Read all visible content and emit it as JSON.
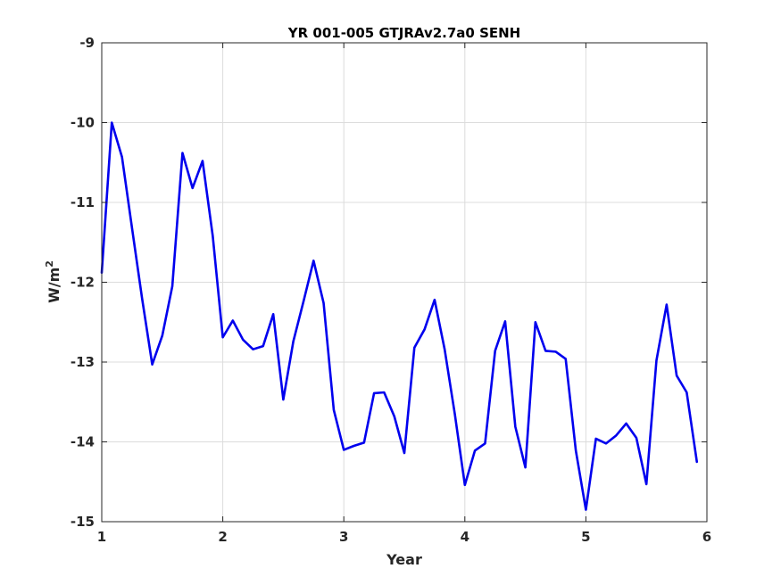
{
  "chart_data": {
    "type": "line",
    "title": "YR 001-005 GTJRAv2.7a0 SENH",
    "xlabel": "Year",
    "ylabel": {
      "base": "W/m",
      "superscript": "2"
    },
    "xlim": [
      1,
      6
    ],
    "ylim": [
      -15,
      -9
    ],
    "xticks": [
      "1",
      "2",
      "3",
      "4",
      "5",
      "6"
    ],
    "yticks": [
      "-9",
      "-10",
      "-11",
      "-12",
      "-13",
      "-14",
      "-15"
    ],
    "grid": true,
    "colors": {
      "series": "#0000ee",
      "grid": "#dcdcdc",
      "axis": "#262626"
    },
    "series": [
      {
        "x": [
          1.0,
          1.083,
          1.167,
          1.25,
          1.333,
          1.417,
          1.5,
          1.583,
          1.667,
          1.75,
          1.833,
          1.917,
          2.0,
          2.083,
          2.167,
          2.25,
          2.333,
          2.417,
          2.5,
          2.583,
          2.667,
          2.75,
          2.833,
          2.917,
          3.0,
          3.083,
          3.167,
          3.25,
          3.333,
          3.417,
          3.5,
          3.583,
          3.667,
          3.75,
          3.833,
          3.917,
          4.0,
          4.083,
          4.167,
          4.25,
          4.333,
          4.417,
          4.5,
          4.583,
          4.667,
          4.75,
          4.833,
          4.917,
          5.0,
          5.083,
          5.167,
          5.25,
          5.333,
          5.417,
          5.5,
          5.583,
          5.667,
          5.75,
          5.833,
          5.917
        ],
        "values": [
          -11.88,
          -10.0,
          -10.43,
          -11.32,
          -12.2,
          -13.03,
          -12.67,
          -12.05,
          -10.38,
          -10.82,
          -10.48,
          -11.42,
          -12.69,
          -12.48,
          -12.72,
          -12.84,
          -12.8,
          -12.4,
          -13.47,
          -12.74,
          -12.24,
          -11.73,
          -12.26,
          -13.6,
          -14.1,
          -14.05,
          -14.01,
          -13.39,
          -13.38,
          -13.68,
          -14.14,
          -12.82,
          -12.59,
          -12.22,
          -12.84,
          -13.65,
          -14.54,
          -14.11,
          -14.02,
          -12.86,
          -12.49,
          -13.81,
          -14.32,
          -12.5,
          -12.86,
          -12.87,
          -12.96,
          -14.11,
          -14.85,
          -13.96,
          -14.02,
          -13.92,
          -13.77,
          -13.95,
          -14.53,
          -12.98,
          -12.28,
          -13.17,
          -13.38,
          -14.25
        ]
      }
    ]
  }
}
